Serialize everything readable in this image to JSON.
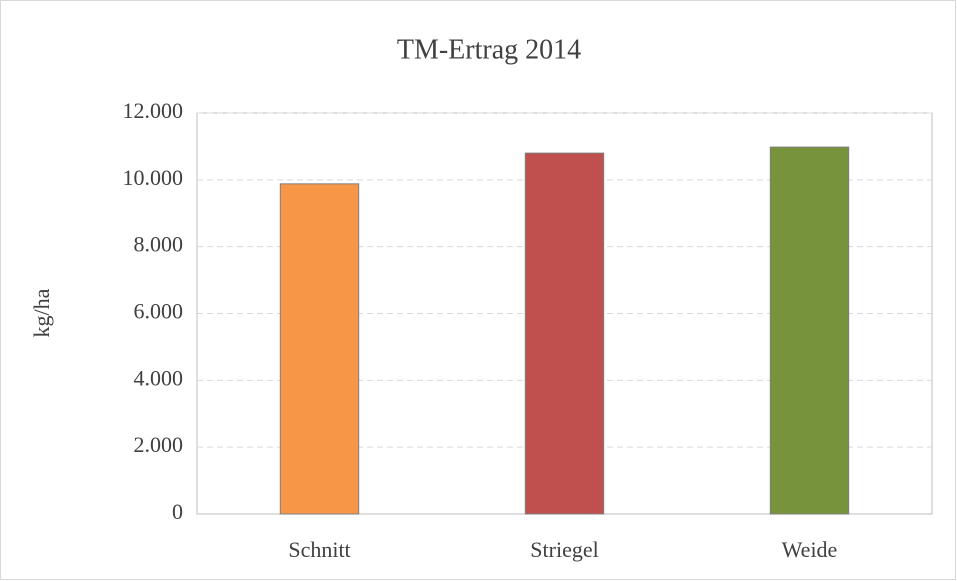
{
  "chart_data": {
    "type": "bar",
    "title": "TM-Ertrag 2014",
    "y_label": "kg/ha",
    "categories": [
      "Schnitt",
      "Striegel",
      "Weide"
    ],
    "values": [
      9880,
      10800,
      10980
    ],
    "colors": [
      "#f79646",
      "#c0504d",
      "#77933c"
    ],
    "ylim": [
      0,
      12000
    ],
    "yticks": [
      0,
      {
        "value": 2000,
        "label": "2.000"
      },
      {
        "value": 4000,
        "label": "4.000"
      },
      {
        "value": 6000,
        "label": "6.000"
      },
      {
        "value": 8000,
        "label": "8.000"
      },
      {
        "value": 10000,
        "label": "10.000"
      },
      {
        "value": 12000,
        "label": "12.000"
      }
    ],
    "grid": true
  }
}
